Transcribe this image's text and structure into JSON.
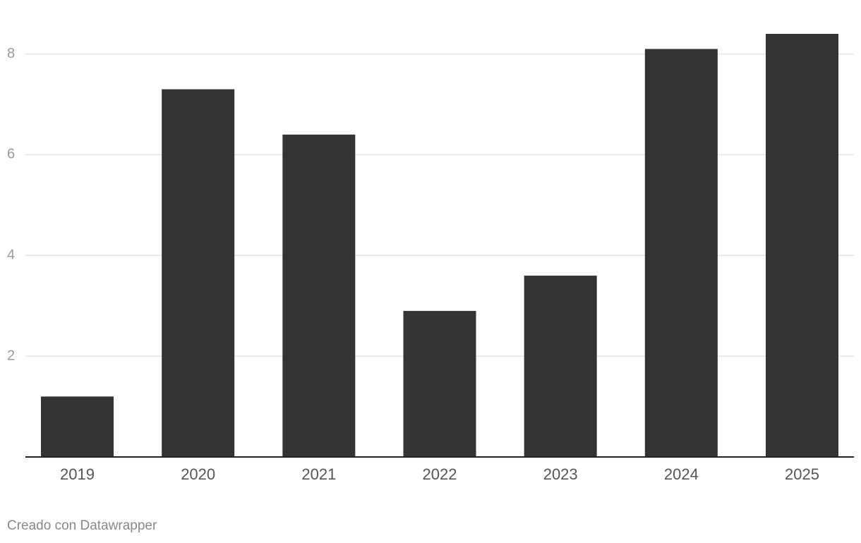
{
  "chart_data": {
    "type": "bar",
    "categories": [
      "2019",
      "2020",
      "2021",
      "2022",
      "2023",
      "2024",
      "2025"
    ],
    "values": [
      1.2,
      7.3,
      6.4,
      2.9,
      3.6,
      8.1,
      8.4
    ],
    "color": "#333333",
    "ylim": [
      0,
      8.4
    ],
    "yticks": [
      2,
      4,
      6,
      8
    ],
    "grid": true,
    "credit": "Creado con Datawrapper"
  }
}
